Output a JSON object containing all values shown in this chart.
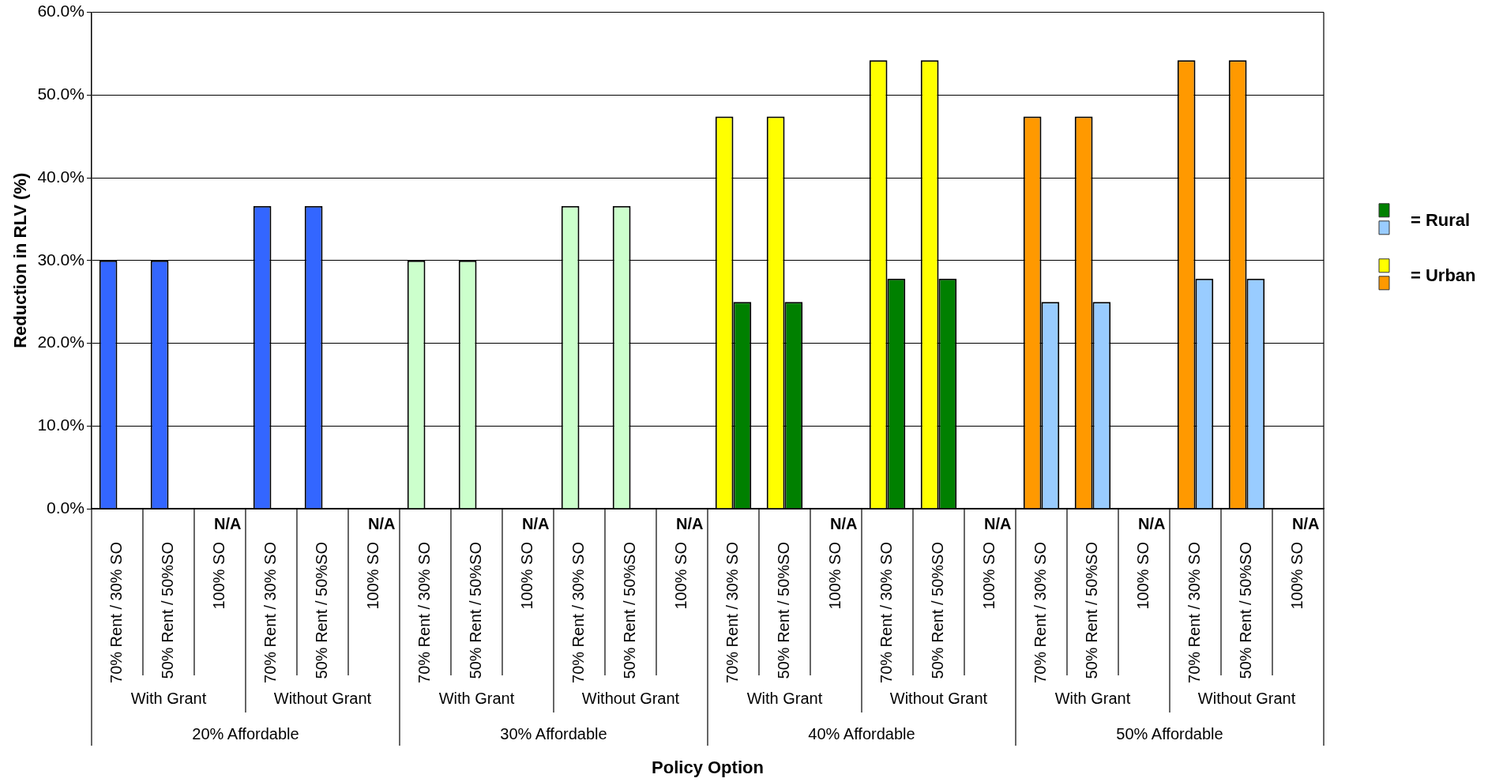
{
  "chart_data": {
    "type": "bar",
    "xlabel": "Policy Option",
    "ylabel": "Reduction in RLV (%)",
    "categories": [
      "70% Rent / 30% SO",
      "50% Rent / 50%SO",
      "100% SO",
      "70% Rent / 30% SO",
      "50% Rent / 50%SO",
      "100% SO",
      "70% Rent / 30% SO",
      "50% Rent / 50%SO",
      "100% SO",
      "70% Rent / 30% SO",
      "50% Rent / 50%SO",
      "100% SO",
      "70% Rent / 30% SO",
      "50% Rent / 50%SO",
      "100% SO",
      "70% Rent / 30% SO",
      "50% Rent / 50%SO",
      "100% SO",
      "70% Rent / 30% SO",
      "50% Rent / 50%SO",
      "100% SO",
      "70% Rent / 30% SO",
      "50% Rent / 50%SO",
      "100% SO"
    ],
    "series": [
      {
        "values": [
          30.0,
          30.0,
          null,
          36.6,
          36.6,
          null,
          30.0,
          30.0,
          null,
          36.6,
          36.6,
          null,
          null,
          null,
          null,
          null,
          null,
          null,
          null,
          null,
          null,
          null,
          null,
          null
        ],
        "colors": [
          "#3366ff",
          "#3366ff",
          null,
          "#3366ff",
          "#3366ff",
          null,
          "#ccffcc",
          "#ccffcc",
          null,
          "#ccffcc",
          "#ccffcc",
          null,
          null,
          null,
          null,
          null,
          null,
          null,
          null,
          null,
          null,
          null,
          null,
          null
        ],
        "value_labels": [
          null,
          null,
          "N/A",
          null,
          null,
          "N/A",
          null,
          null,
          "N/A",
          null,
          null,
          "N/A",
          null,
          null,
          null,
          null,
          null,
          null,
          null,
          null,
          null,
          null,
          null,
          null
        ]
      },
      {
        "name": "= Urban",
        "values": [
          null,
          null,
          null,
          null,
          null,
          null,
          null,
          null,
          null,
          null,
          null,
          null,
          47.4,
          47.4,
          null,
          54.2,
          54.2,
          null,
          47.4,
          47.4,
          null,
          54.2,
          54.2,
          null
        ],
        "colors": [
          null,
          null,
          null,
          null,
          null,
          null,
          null,
          null,
          null,
          null,
          null,
          null,
          "#ffff00",
          "#ffff00",
          null,
          "#ffff00",
          "#ffff00",
          null,
          "#ff9900",
          "#ff9900",
          null,
          "#ff9900",
          "#ff9900",
          null
        ],
        "value_labels": [
          null,
          null,
          null,
          null,
          null,
          null,
          null,
          null,
          null,
          null,
          null,
          null,
          null,
          null,
          "N/A",
          null,
          null,
          "N/A",
          null,
          null,
          "N/A",
          null,
          null,
          "N/A"
        ]
      },
      {
        "name": "= Rural",
        "values": [
          null,
          null,
          null,
          null,
          null,
          null,
          null,
          null,
          null,
          null,
          null,
          null,
          25.0,
          25.0,
          null,
          27.8,
          27.8,
          null,
          25.0,
          25.0,
          null,
          27.8,
          27.8,
          null
        ],
        "colors": [
          null,
          null,
          null,
          null,
          null,
          null,
          null,
          null,
          null,
          null,
          null,
          null,
          "#008000",
          "#008000",
          null,
          "#008000",
          "#008000",
          null,
          "#99ccff",
          "#99ccff",
          null,
          "#99ccff",
          "#99ccff",
          null
        ]
      }
    ],
    "ylim": [
      0,
      60
    ],
    "yticks": [
      {
        "value": 0,
        "label": "0.0%"
      },
      {
        "value": 10,
        "label": "10.0%"
      },
      {
        "value": 20,
        "label": "20.0%"
      },
      {
        "value": 30,
        "label": "30.0%"
      },
      {
        "value": 40,
        "label": "40.0%"
      },
      {
        "value": 50,
        "label": "50.0%"
      },
      {
        "value": 60,
        "label": "60.0%"
      }
    ],
    "grid": "y",
    "legend": "right",
    "annotations": [
      "With Grant",
      "Without Grant",
      "With Grant",
      "Without Grant",
      "With Grant",
      "Without Grant",
      "With Grant",
      "Without Grant",
      "20% Affordable",
      "30% Affordable",
      "40% Affordable",
      "50% Affordable"
    ]
  }
}
